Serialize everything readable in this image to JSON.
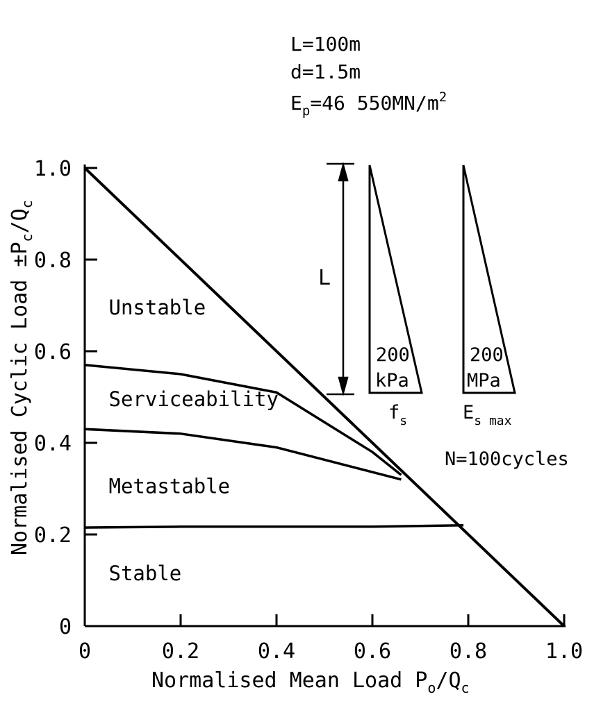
{
  "chart_data": {
    "type": "line",
    "title_lines": [
      {
        "text": "L=100m"
      },
      {
        "text": "d=1.5m"
      },
      {
        "main": "E",
        "sub": "p",
        "rest": "=46 550MN/m",
        "sup": "2"
      }
    ],
    "xlabel": {
      "main": "Normalised Mean Load P",
      "sub": "o",
      "rest": "/Q",
      "sub2": "c"
    },
    "ylabel": {
      "main": "Normalised Cyclic Load ±P",
      "sub": "c",
      "rest": "/Q",
      "sub2": "c"
    },
    "xlim": [
      0,
      1.0
    ],
    "ylim": [
      0,
      1.0
    ],
    "x_ticks": [
      0,
      0.2,
      0.4,
      0.6,
      0.8,
      1.0
    ],
    "x_tick_labels": [
      "0",
      "0.2",
      "0.4",
      "0.6",
      "0.8",
      "1.0"
    ],
    "y_ticks": [
      0,
      0.2,
      0.4,
      0.6,
      0.8,
      1.0
    ],
    "y_tick_labels": [
      "0",
      "0.2",
      "0.4",
      "0.6",
      "0.8",
      "1.0"
    ],
    "series": [
      {
        "x": [
          0,
          1.0
        ],
        "y": [
          1.0,
          0
        ]
      },
      {
        "x": [
          0,
          0.2,
          0.4,
          0.6,
          0.66
        ],
        "y": [
          0.57,
          0.55,
          0.51,
          0.38,
          0.33
        ]
      },
      {
        "x": [
          0,
          0.2,
          0.4,
          0.66
        ],
        "y": [
          0.43,
          0.42,
          0.39,
          0.32
        ]
      },
      {
        "x": [
          0,
          0.2,
          0.4,
          0.6,
          0.79
        ],
        "y": [
          0.215,
          0.217,
          0.217,
          0.217,
          0.22
        ]
      }
    ],
    "regions": [
      {
        "label": "Unstable",
        "x": 0.05,
        "y": 0.68
      },
      {
        "label": "Serviceability",
        "x": 0.05,
        "y": 0.48
      },
      {
        "label": "Metastable",
        "x": 0.05,
        "y": 0.29
      },
      {
        "label": "Stable",
        "x": 0.05,
        "y": 0.1
      }
    ],
    "cycles_note": "N=100cycles",
    "inset": {
      "length_label": "L",
      "profiles": [
        {
          "value": "200",
          "unit": "kPa",
          "name_main": "f",
          "name_sub": "s"
        },
        {
          "value": "200",
          "unit": "MPa",
          "name_main": "E",
          "name_sub": "s max"
        }
      ]
    }
  }
}
